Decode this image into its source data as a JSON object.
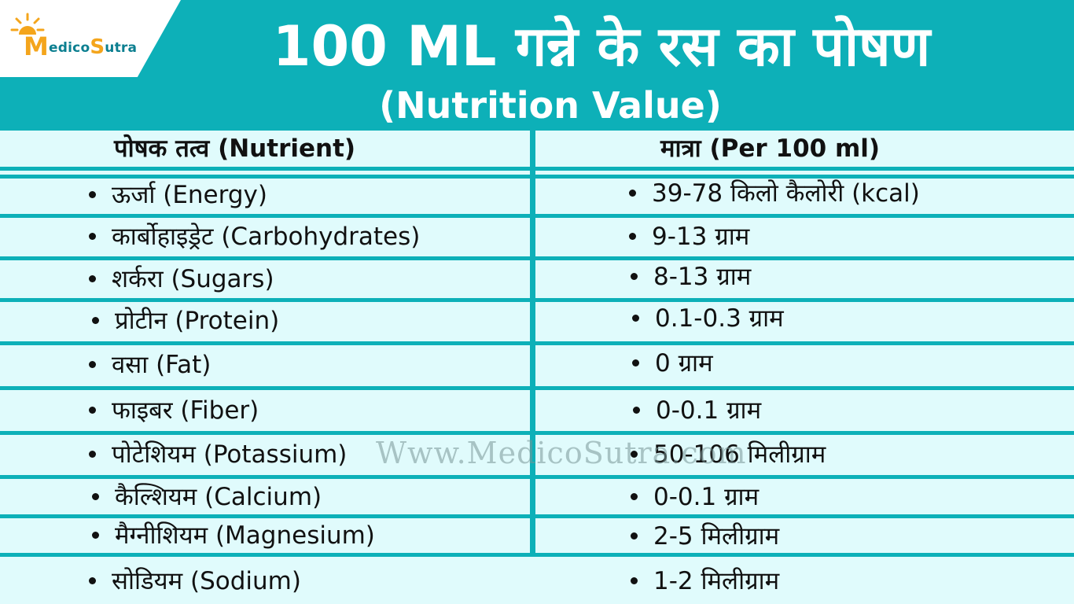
{
  "header": {
    "title": "100 ML गन्ने के रस का पोषण",
    "subtitle": "(Nutrition Value)",
    "logo": {
      "first_letter": "M",
      "part1": "edico",
      "second_letter": "S",
      "part2": "utra"
    }
  },
  "table": {
    "col_nutrient": "पोषक तत्व (Nutrient)",
    "col_amount": "मात्रा (Per 100 ml)",
    "rows": [
      {
        "nutrient": "ऊर्जा (Energy)",
        "amount": "39-78 किलो कैलोरी (kcal)"
      },
      {
        "nutrient": "कार्बोहाइड्रेट (Carbohydrates)",
        "amount": "9-13 ग्राम"
      },
      {
        "nutrient": "शर्करा (Sugars)",
        "amount": "8-13 ग्राम"
      },
      {
        "nutrient": "प्रोटीन (Protein)",
        "amount": "0.1-0.3 ग्राम"
      },
      {
        "nutrient": "वसा (Fat)",
        "amount": "0 ग्राम"
      },
      {
        "nutrient": "फाइबर (Fiber)",
        "amount": "0-0.1 ग्राम"
      },
      {
        "nutrient": "पोटेशियम (Potassium)",
        "amount": "50-106 मिलीग्राम"
      },
      {
        "nutrient": "कैल्शियम (Calcium)",
        "amount": "0-0.1 ग्राम"
      },
      {
        "nutrient": "मैग्नीशियम (Magnesium)",
        "amount": "2-5 मिलीग्राम"
      },
      {
        "nutrient": "सोडियम (Sodium)",
        "amount": "1-2 मिलीग्राम"
      }
    ]
  },
  "watermark": "Www.MedicoSutra.com",
  "colors": {
    "accent": "#0db0b8",
    "background": "#e0fbfc",
    "logo_orange": "#f4a51c",
    "logo_teal": "#0c7f90"
  },
  "icons": [
    "sun-icon",
    "bullet-icon"
  ]
}
